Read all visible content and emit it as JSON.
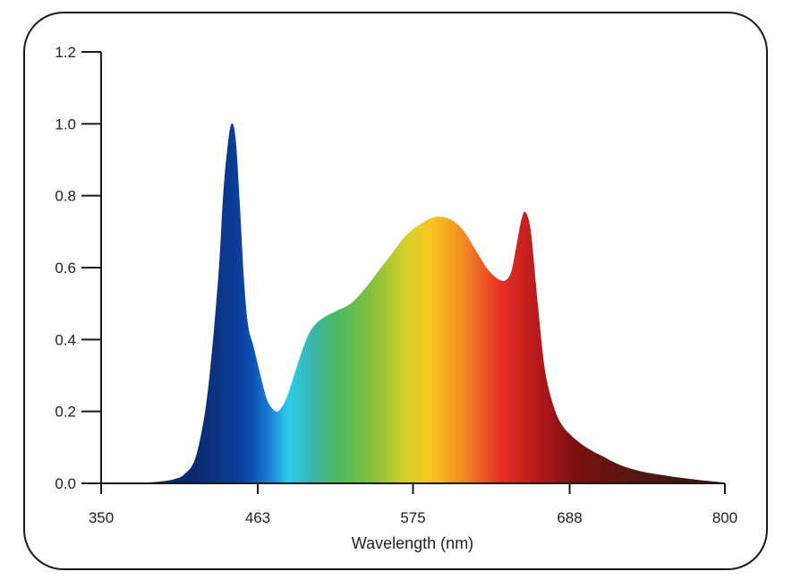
{
  "chart_data": {
    "type": "area",
    "title": "",
    "xlabel": "Wavelength (nm)",
    "ylabel": "",
    "xlim": [
      350,
      800
    ],
    "ylim": [
      0,
      1.2
    ],
    "x_ticks": [
      "350",
      "463",
      "575",
      "688",
      "800"
    ],
    "y_ticks": [
      "0.0",
      "0.2",
      "0.4",
      "0.6",
      "0.8",
      "1.0",
      "1.2"
    ],
    "grid": false,
    "legend": "none",
    "fill": "visible-spectrum gradient (blue to deep red)",
    "series": [
      {
        "x": [
          350,
          380,
          395,
          403,
          410,
          418,
          425,
          430,
          435,
          438,
          441,
          444,
          447,
          450,
          453,
          456,
          460,
          465,
          470,
          476,
          480,
          484,
          490,
          496,
          502,
          510,
          520,
          530,
          540,
          550,
          560,
          570,
          580,
          590,
          597,
          604,
          612,
          620,
          628,
          634,
          638,
          642,
          646,
          650,
          653,
          656,
          660,
          665,
          670,
          676,
          682,
          690,
          700,
          712,
          725,
          740,
          760,
          780,
          800
        ],
        "y": [
          0.0,
          0.002,
          0.006,
          0.012,
          0.025,
          0.07,
          0.2,
          0.37,
          0.6,
          0.8,
          0.93,
          1.0,
          0.96,
          0.78,
          0.57,
          0.44,
          0.38,
          0.3,
          0.23,
          0.2,
          0.21,
          0.24,
          0.31,
          0.38,
          0.43,
          0.46,
          0.48,
          0.5,
          0.54,
          0.59,
          0.64,
          0.69,
          0.72,
          0.74,
          0.74,
          0.73,
          0.7,
          0.65,
          0.6,
          0.575,
          0.565,
          0.565,
          0.59,
          0.67,
          0.73,
          0.755,
          0.7,
          0.5,
          0.32,
          0.22,
          0.165,
          0.13,
          0.1,
          0.075,
          0.05,
          0.033,
          0.02,
          0.01,
          0.002
        ]
      }
    ]
  }
}
